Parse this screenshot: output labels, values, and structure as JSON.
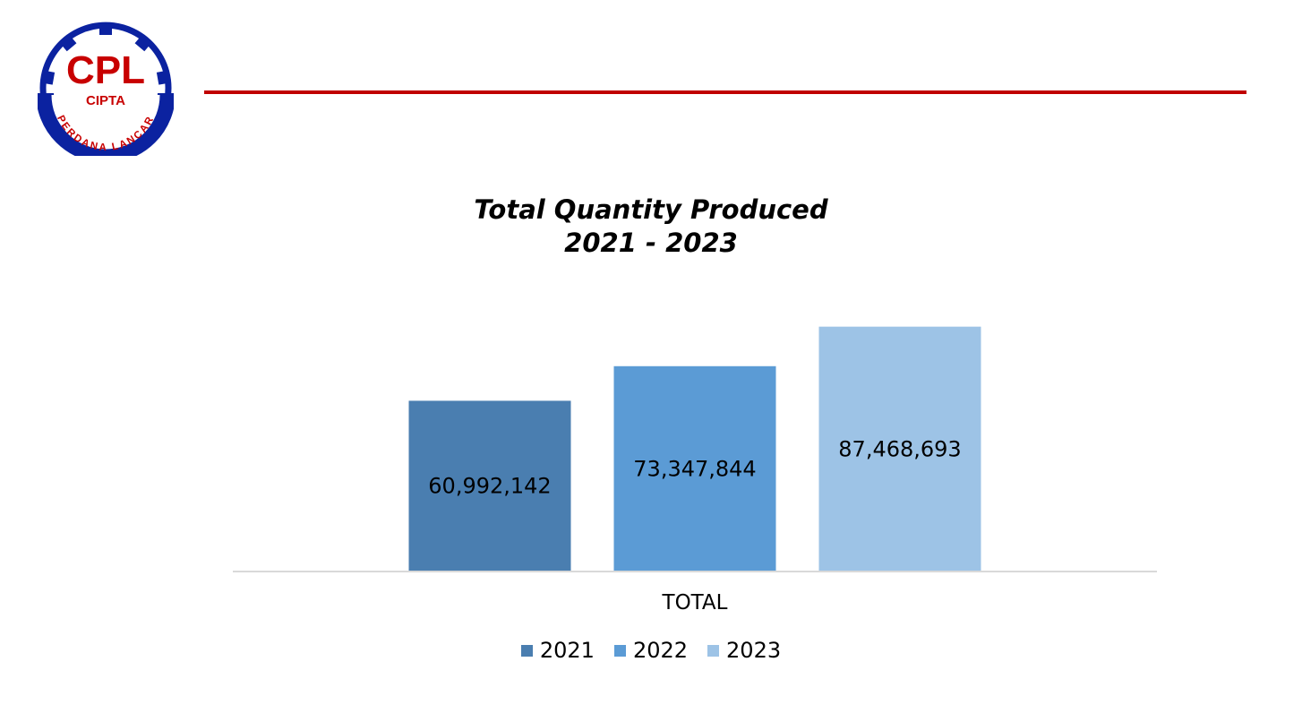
{
  "logo": {
    "initials": "CPL",
    "name": "CIPTA",
    "arc_text": "PERDANA LANCAR",
    "colors": {
      "blue": "#0b22a0",
      "red": "#c80000"
    }
  },
  "header": {
    "rule_color": "#c00000"
  },
  "chart_data": {
    "type": "bar",
    "title": [
      "Total Quantity Produced",
      "2021 - 2023"
    ],
    "categories": [
      "TOTAL"
    ],
    "series": [
      {
        "name": "2021",
        "values": [
          60992142
        ],
        "label": "60,992,142",
        "color": "#4a7eb0"
      },
      {
        "name": "2022",
        "values": [
          73347844
        ],
        "label": "73,347,844",
        "color": "#5b9bd5"
      },
      {
        "name": "2023",
        "values": [
          87468693
        ],
        "label": "87,468,693",
        "color": "#9dc3e6"
      }
    ],
    "xlabel": "",
    "ylabel": "",
    "ylim": [
      0,
      88000000
    ],
    "grid": false,
    "legend_position": "bottom"
  }
}
